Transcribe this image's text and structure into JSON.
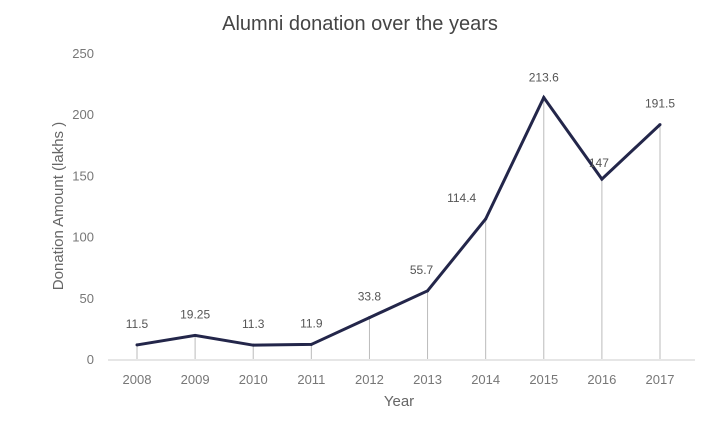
{
  "chart_data": {
    "type": "line",
    "title": "Alumni donation over the years",
    "xlabel": "Year",
    "ylabel": "Donation Amount (lakhs )",
    "categories": [
      "2008",
      "2009",
      "2010",
      "2011",
      "2012",
      "2013",
      "2014",
      "2015",
      "2016",
      "2017"
    ],
    "values": [
      11.5,
      19.25,
      11.3,
      11.9,
      33.8,
      55.7,
      114.4,
      213.6,
      147,
      191.5
    ],
    "data_labels": [
      "11.5",
      "19.25",
      "11.3",
      "11.9",
      "33.8",
      "55.7",
      "114.4",
      "213.6",
      "147",
      "191.5"
    ],
    "yticks": [
      0,
      50,
      100,
      150,
      200,
      250
    ],
    "ylim": [
      0,
      250
    ],
    "grid": false,
    "drop_lines": true,
    "colors": {
      "line": "#23264a",
      "drop_line": "#bbbbbb",
      "text": "#555555",
      "axis": "#dddddd"
    }
  }
}
